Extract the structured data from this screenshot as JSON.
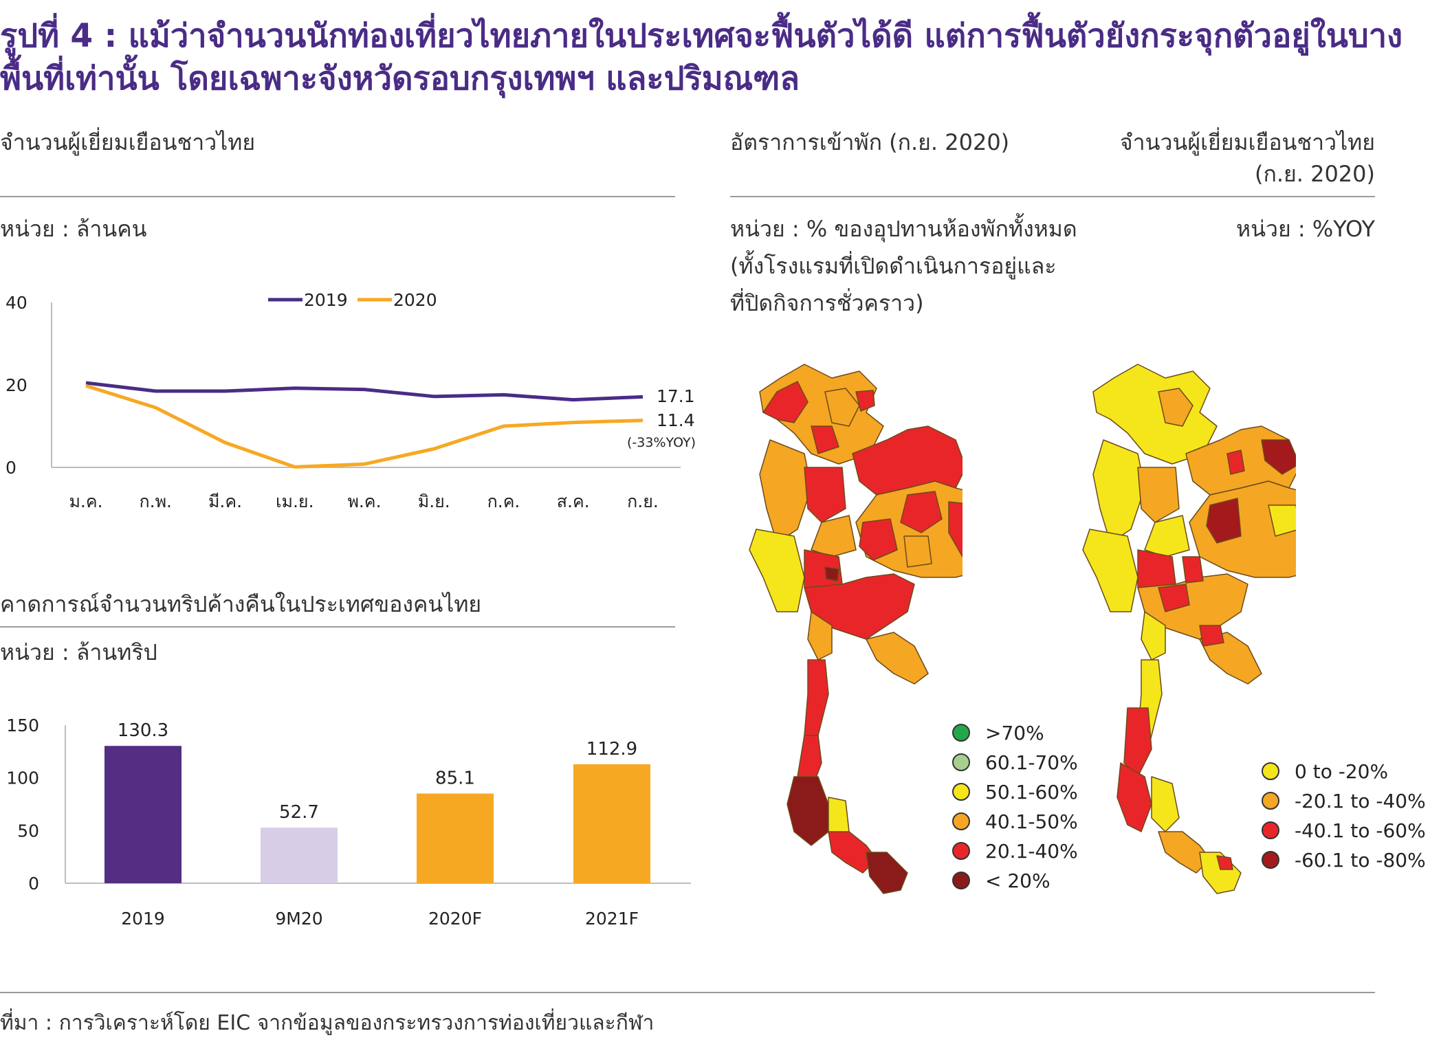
{
  "title": "รูปที่ 4 : แม้ว่าจำนวนนักท่องเที่ยวไทยภายในประเทศจะฟื้นตัวได้ดี แต่การฟื้นตัวยังกระจุกตัวอยู่ในบางพื้นที่เท่านั้น โดยเฉพาะจังหวัดรอบกรุงเทพฯ และปริมณฑล",
  "left_top": {
    "header": "จำนวนผู้เยี่ยมเยือนชาวไทย",
    "unit": "หน่วย : ล้านคน",
    "end_label_2019": "17.1",
    "end_label_2020": "11.4",
    "end_note_2020": "(-33%YOY)"
  },
  "left_bottom": {
    "header": "คาดการณ์จำนวนทริปค้างคืนในประเทศของคนไทย",
    "unit": "หน่วย : ล้านทริป"
  },
  "map_left": {
    "header": "อัตราการเข้าพัก (ก.ย. 2020)",
    "unit_line1": "หน่วย : % ของอุปทานห้องพักทั้งหมด",
    "unit_line2": "(ทั้งโรงแรมที่เปิดดำเนินการอยู่และ",
    "unit_line3": "ที่ปิดกิจการชั่วคราว)",
    "legend": [
      {
        "label": ">70%",
        "color": "#22a84a"
      },
      {
        "label": "60.1-70%",
        "color": "#a8d08d"
      },
      {
        "label": "50.1-60%",
        "color": "#f5e61b"
      },
      {
        "label": "40.1-50%",
        "color": "#f5a623"
      },
      {
        "label": "20.1-40%",
        "color": "#e8262a"
      },
      {
        "label": "< 20%",
        "color": "#8b1a1a"
      }
    ]
  },
  "map_right": {
    "header_line1": "จำนวนผู้เยี่ยมเยือนชาวไทย",
    "header_line2": "(ก.ย. 2020)",
    "unit": "หน่วย : %YOY",
    "legend": [
      {
        "label": "0 to -20%",
        "color": "#f5e61b"
      },
      {
        "label": "-20.1 to -40%",
        "color": "#f5a623"
      },
      {
        "label": "-40.1 to -60%",
        "color": "#e8262a"
      },
      {
        "label": "-60.1 to -80%",
        "color": "#a3191c"
      }
    ]
  },
  "source": "ที่มา : การวิเคราะห์โดย EIC จากข้อมูลของกระทรวงการท่องเที่ยวและกีฬา",
  "chart_data": [
    {
      "type": "line",
      "x": [
        "ม.ค.",
        "ก.พ.",
        "มี.ค.",
        "เม.ย.",
        "พ.ค.",
        "มิ.ย.",
        "ก.ค.",
        "ส.ค.",
        "ก.ย."
      ],
      "series": [
        {
          "name": "2019",
          "color": "#4a2c86",
          "values": [
            20.5,
            18.5,
            18.5,
            19.2,
            18.9,
            17.2,
            17.6,
            16.4,
            17.1
          ]
        },
        {
          "name": "2020",
          "color": "#f7a823",
          "values": [
            19.8,
            14.5,
            6.0,
            0.1,
            0.8,
            4.5,
            10.0,
            10.9,
            11.4
          ]
        }
      ],
      "yticks": [
        0,
        20,
        40
      ],
      "ylim": [
        0,
        40
      ]
    },
    {
      "type": "bar",
      "categories": [
        "2019",
        "9M20",
        "2020F",
        "2021F"
      ],
      "values": [
        130.3,
        52.7,
        85.1,
        112.9
      ],
      "colors": [
        "#532e82",
        "#d7cde6",
        "#f7a823",
        "#f7a823"
      ],
      "yticks": [
        0,
        50,
        100,
        150
      ],
      "ylim": [
        0,
        150
      ]
    }
  ]
}
